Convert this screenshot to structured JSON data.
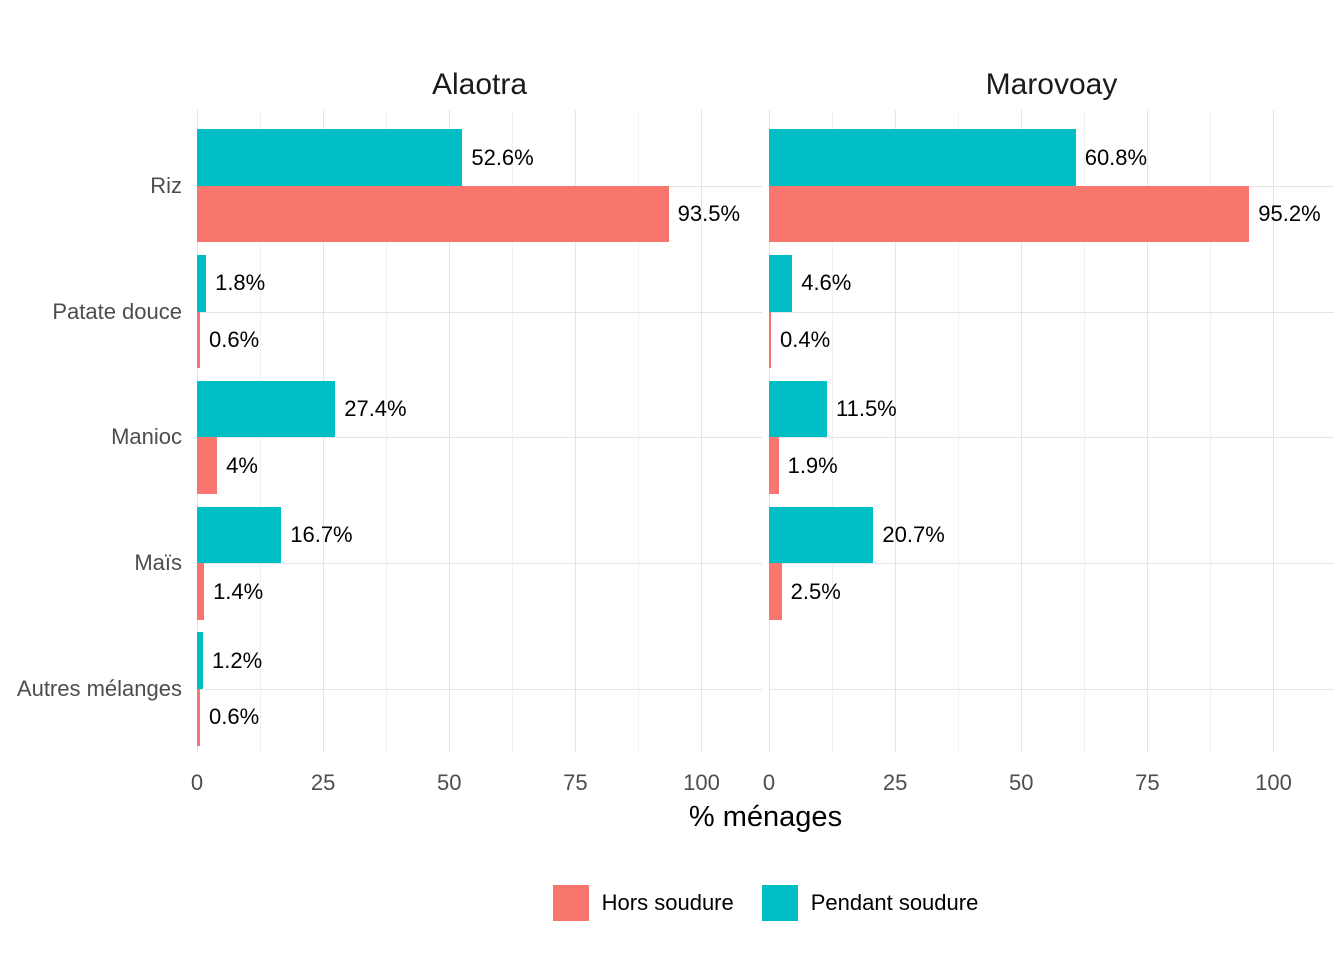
{
  "chart_data": {
    "type": "bar",
    "orientation": "horizontal",
    "title": "",
    "xlabel": "% ménages",
    "ylabel": "",
    "xlim": [
      0,
      112
    ],
    "x_ticks": [
      0,
      25,
      50,
      75,
      100
    ],
    "x_minor_ticks": [
      12.5,
      37.5,
      62.5,
      87.5
    ],
    "grid": "on",
    "legend_position": "bottom",
    "categories": [
      "Riz",
      "Patate douce",
      "Manioc",
      "Maïs",
      "Autres mélanges"
    ],
    "legend": [
      {
        "name": "Hors soudure",
        "color": "#F8766D"
      },
      {
        "name": "Pendant soudure",
        "color": "#00BFC4"
      }
    ],
    "facets": [
      {
        "title": "Alaotra",
        "series": [
          {
            "name": "Pendant soudure",
            "color": "#00BFC4",
            "position": "top",
            "values": [
              52.6,
              1.8,
              27.4,
              16.7,
              1.2
            ],
            "labels": [
              "52.6%",
              "1.8%",
              "27.4%",
              "16.7%",
              "1.2%"
            ]
          },
          {
            "name": "Hors soudure",
            "color": "#F8766D",
            "position": "bottom",
            "values": [
              93.5,
              0.6,
              4,
              1.4,
              0.6
            ],
            "labels": [
              "93.5%",
              "0.6%",
              "4%",
              "1.4%",
              "0.6%"
            ]
          }
        ]
      },
      {
        "title": "Marovoay",
        "series": [
          {
            "name": "Pendant soudure",
            "color": "#00BFC4",
            "position": "top",
            "values": [
              60.8,
              4.6,
              11.5,
              20.7,
              null
            ],
            "labels": [
              "60.8%",
              "4.6%",
              "11.5%",
              "20.7%",
              null
            ]
          },
          {
            "name": "Hors soudure",
            "color": "#F8766D",
            "position": "bottom",
            "values": [
              95.2,
              0.4,
              1.9,
              2.5,
              null
            ],
            "labels": [
              "95.2%",
              "0.4%",
              "1.9%",
              "2.5%",
              null
            ]
          }
        ]
      }
    ]
  },
  "style": {
    "bar_color_hors": "#F8766D",
    "bar_color_pendant": "#00BFC4",
    "grid_major_color": "#e4e4e4",
    "grid_minor_color": "#f1f1f1",
    "axis_text_color": "#4d4d4d",
    "label_text_color": "#000000",
    "title_text_color": "#1a1a1a",
    "background": "#ffffff"
  }
}
